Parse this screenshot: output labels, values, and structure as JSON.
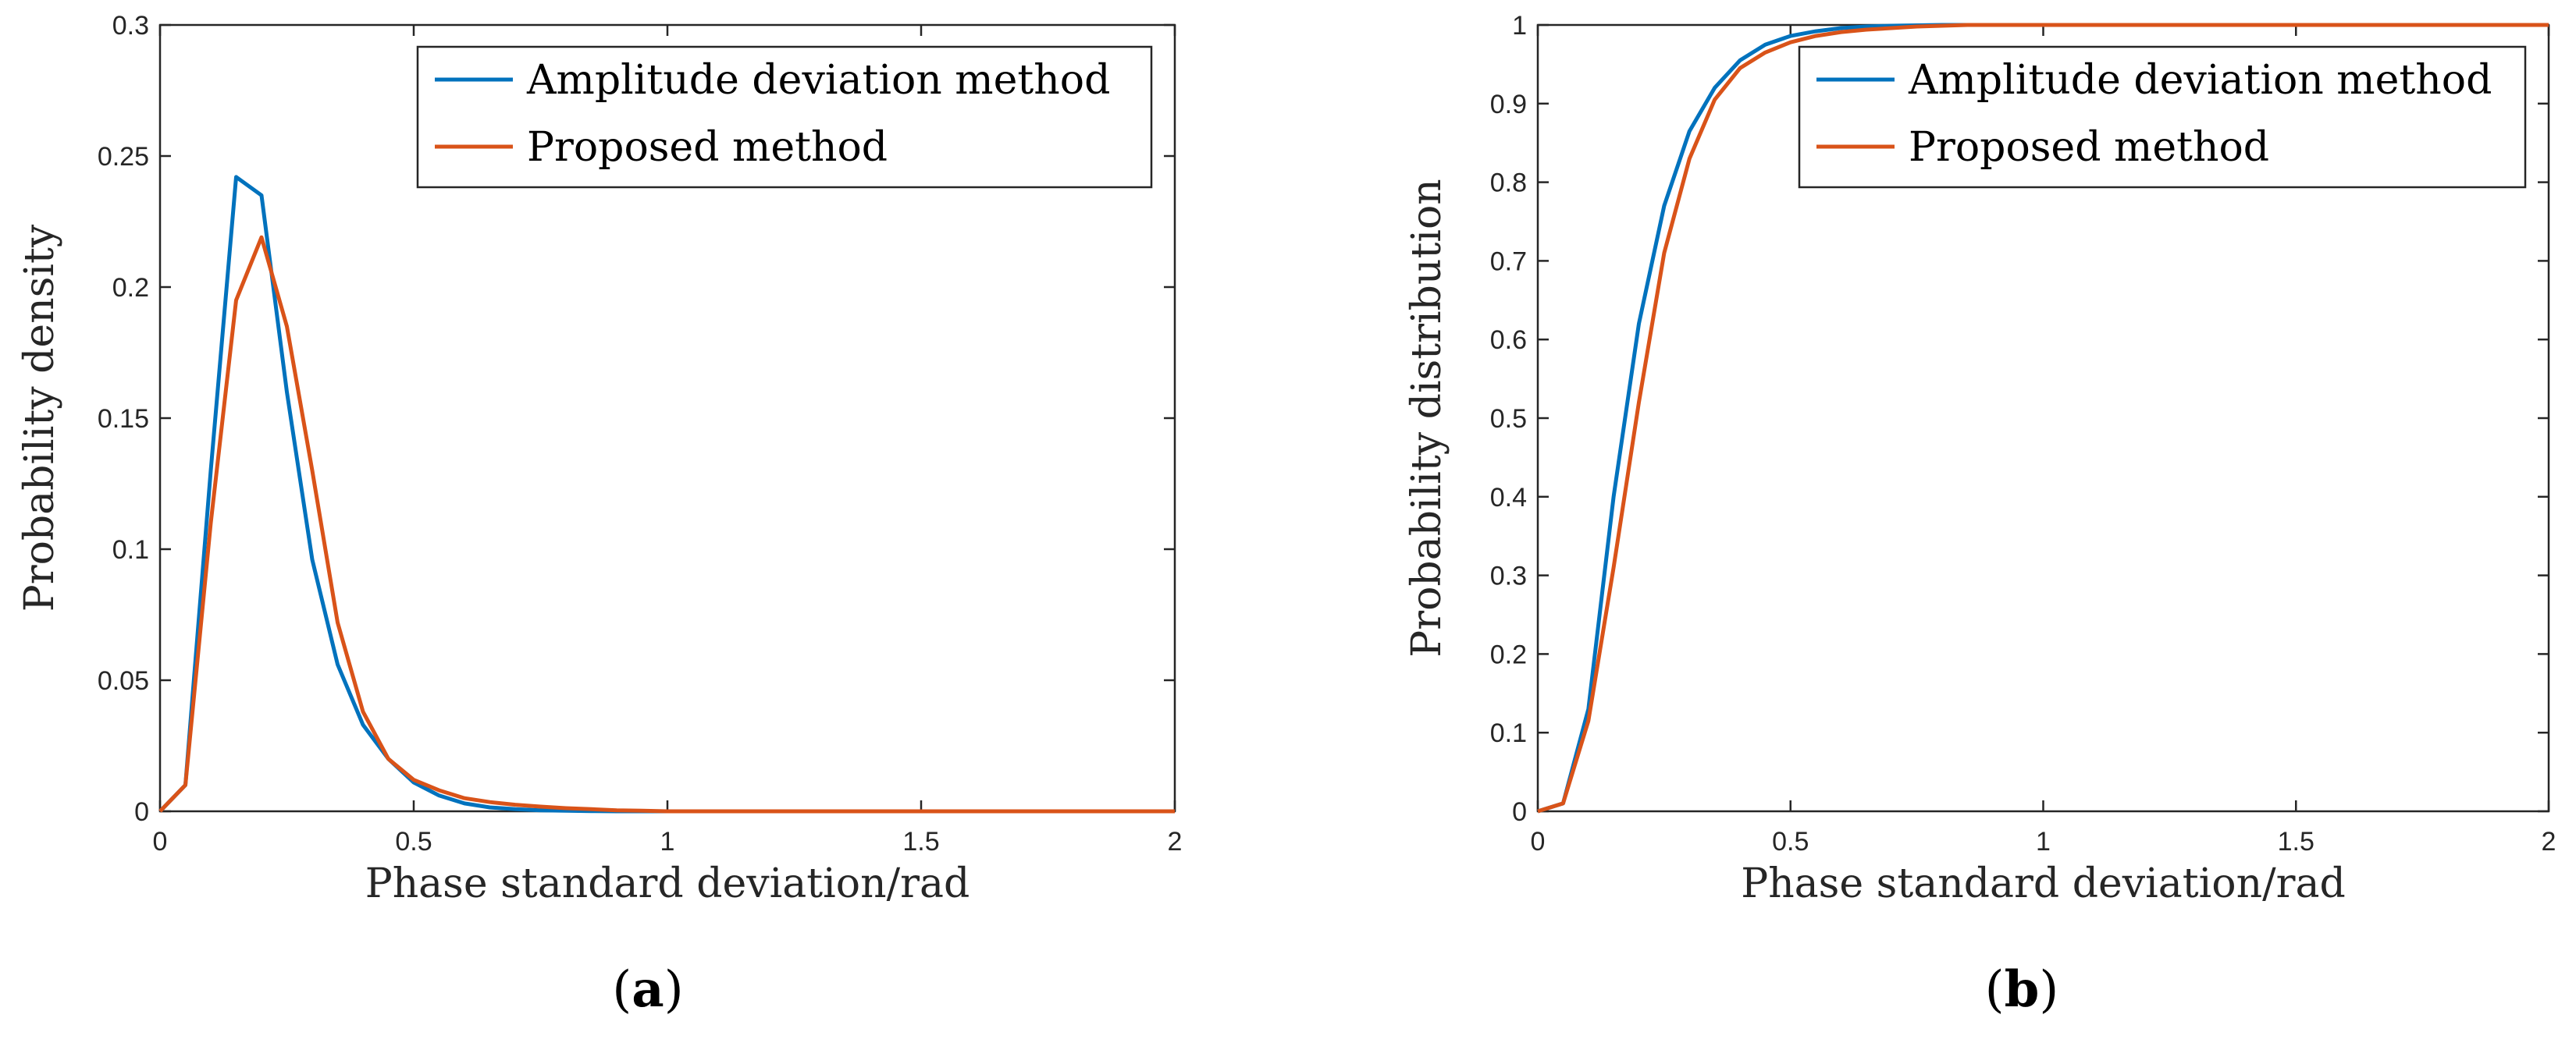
{
  "chart_data": [
    {
      "panel_label": "a",
      "type": "line",
      "title": "",
      "xlabel": "Phase standard deviation/rad",
      "ylabel": "Probability density",
      "xlim": [
        0,
        2
      ],
      "ylim": [
        0,
        0.3
      ],
      "xticks": [
        0,
        0.5,
        1,
        1.5,
        2
      ],
      "xtick_labels": [
        "0",
        "0.5",
        "1",
        "1.5",
        "2"
      ],
      "yticks": [
        0,
        0.05,
        0.1,
        0.15,
        0.2,
        0.25,
        0.3
      ],
      "ytick_labels": [
        "0",
        "0.05",
        "0.1",
        "0.15",
        "0.2",
        "0.25",
        "0.3"
      ],
      "grid": false,
      "legend_position": "top-right",
      "series": [
        {
          "name": "Amplitude deviation method",
          "color": "#0072BD",
          "x": [
            0,
            0.05,
            0.1,
            0.15,
            0.2,
            0.25,
            0.3,
            0.35,
            0.4,
            0.45,
            0.5,
            0.55,
            0.6,
            0.65,
            0.7,
            0.75,
            0.8,
            0.85,
            0.9,
            0.95,
            1.0,
            1.5,
            2.0
          ],
          "values": [
            0,
            0.01,
            0.13,
            0.242,
            0.235,
            0.16,
            0.096,
            0.056,
            0.033,
            0.02,
            0.011,
            0.006,
            0.003,
            0.0015,
            0.0008,
            0.0004,
            0.0002,
            0.0001,
            0,
            0,
            0,
            0,
            0
          ]
        },
        {
          "name": "Proposed method",
          "color": "#D95319",
          "x": [
            0,
            0.05,
            0.1,
            0.15,
            0.2,
            0.25,
            0.3,
            0.35,
            0.4,
            0.45,
            0.5,
            0.55,
            0.6,
            0.65,
            0.7,
            0.75,
            0.8,
            0.85,
            0.9,
            0.95,
            1.0,
            1.5,
            2.0
          ],
          "values": [
            0,
            0.01,
            0.11,
            0.195,
            0.219,
            0.185,
            0.13,
            0.072,
            0.038,
            0.02,
            0.012,
            0.008,
            0.005,
            0.0035,
            0.0025,
            0.0018,
            0.0012,
            0.0008,
            0.0004,
            0.0002,
            0,
            0,
            0
          ]
        }
      ]
    },
    {
      "panel_label": "b",
      "type": "line",
      "title": "",
      "xlabel": "Phase standard deviation/rad",
      "ylabel": "Probability distribution",
      "xlim": [
        0,
        2
      ],
      "ylim": [
        0,
        1
      ],
      "xticks": [
        0,
        0.5,
        1,
        1.5,
        2
      ],
      "xtick_labels": [
        "0",
        "0.5",
        "1",
        "1.5",
        "2"
      ],
      "yticks": [
        0,
        0.1,
        0.2,
        0.3,
        0.4,
        0.5,
        0.6,
        0.7,
        0.8,
        0.9,
        1
      ],
      "ytick_labels": [
        "0",
        "0.1",
        "0.2",
        "0.3",
        "0.4",
        "0.5",
        "0.6",
        "0.7",
        "0.8",
        "0.9",
        "1"
      ],
      "grid": false,
      "legend_position": "top-right",
      "series": [
        {
          "name": "Amplitude deviation method",
          "color": "#0072BD",
          "x": [
            0,
            0.05,
            0.1,
            0.15,
            0.2,
            0.25,
            0.3,
            0.35,
            0.4,
            0.45,
            0.5,
            0.55,
            0.6,
            0.65,
            0.7,
            0.75,
            0.8,
            0.85,
            0.9,
            1.0,
            1.5,
            2.0
          ],
          "values": [
            0,
            0.01,
            0.13,
            0.4,
            0.62,
            0.77,
            0.865,
            0.92,
            0.955,
            0.975,
            0.986,
            0.992,
            0.996,
            0.998,
            0.999,
            0.9995,
            1.0,
            1.0,
            1.0,
            1.0,
            1.0,
            1.0
          ]
        },
        {
          "name": "Proposed method",
          "color": "#D95319",
          "x": [
            0,
            0.05,
            0.1,
            0.15,
            0.2,
            0.25,
            0.3,
            0.35,
            0.4,
            0.45,
            0.5,
            0.55,
            0.6,
            0.65,
            0.7,
            0.75,
            0.8,
            0.85,
            0.9,
            1.0,
            1.5,
            2.0
          ],
          "values": [
            0,
            0.01,
            0.115,
            0.31,
            0.52,
            0.71,
            0.83,
            0.905,
            0.945,
            0.965,
            0.978,
            0.986,
            0.991,
            0.994,
            0.996,
            0.998,
            0.999,
            1.0,
            1.0,
            1.0,
            1.0,
            1.0
          ]
        }
      ]
    }
  ]
}
